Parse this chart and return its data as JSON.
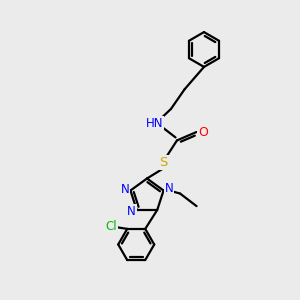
{
  "background_color": "#ebebeb",
  "bond_color": "#000000",
  "bond_lw": 1.6,
  "atom_colors": {
    "N": "#0000ff",
    "O": "#ff0000",
    "S": "#ccaa00",
    "Cl": "#00bb00",
    "H": "#4477aa",
    "C": "#000000"
  },
  "figsize": [
    3.0,
    3.0
  ],
  "dpi": 100
}
